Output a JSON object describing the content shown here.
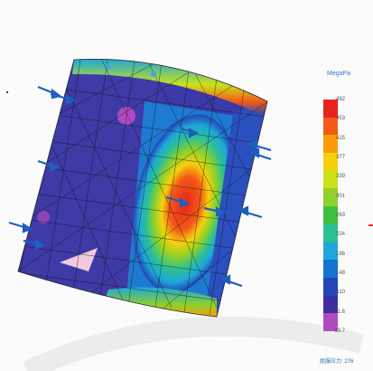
{
  "legend": {
    "title": "MegaPa",
    "ticks": [
      "492",
      "453",
      "415",
      "377",
      "339",
      "301",
      "263",
      "224",
      "186",
      "148",
      "110",
      "71.6",
      "33.7"
    ],
    "colors": [
      "#e8231c",
      "#f35a18",
      "#f99b0b",
      "#f5d10c",
      "#cbe21a",
      "#8fd12a",
      "#3fbf3d",
      "#2bbf95",
      "#1ea7d8",
      "#1673cf",
      "#2445b6",
      "#3b2f9f",
      "#b04ac0"
    ]
  },
  "yield_readout": "屈服应力: 276",
  "accent_color": "#2a6fd0"
}
